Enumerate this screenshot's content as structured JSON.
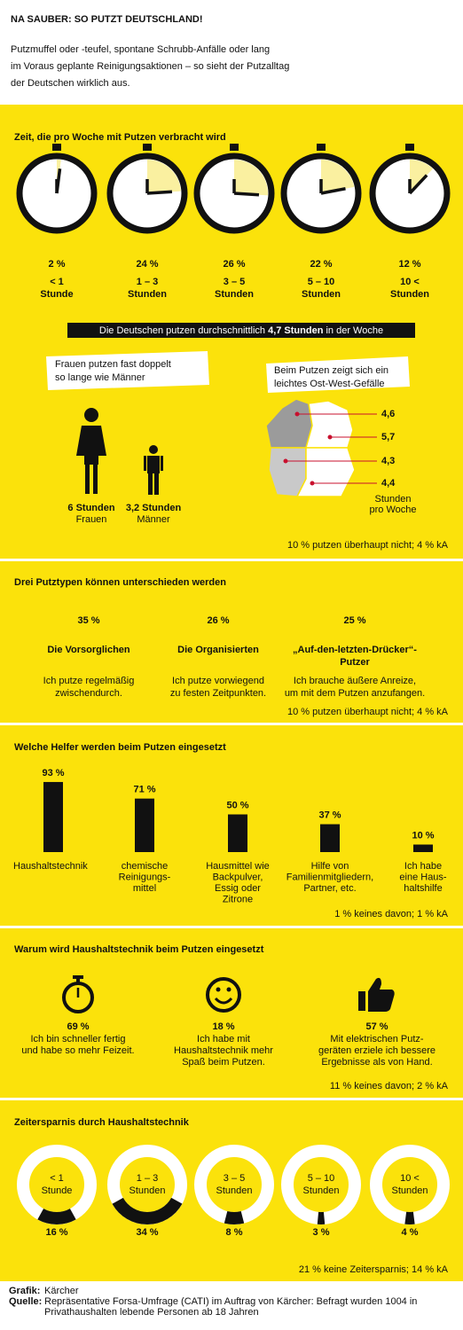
{
  "header": {
    "title": "NA SAUBER: SO PUTZT DEUTSCHLAND!",
    "subtitle": [
      "Putzmuffel oder -teufel, spontane Schrubb-Anfälle oder lang",
      "im Voraus geplante Reinigungsaktionen – so sieht der Putzalltag",
      "der Deutschen wirklich aus."
    ]
  },
  "time_per_week": {
    "title": "Zeit, die pro Woche mit Putzen verbracht wird",
    "clocks": [
      {
        "value": 2,
        "label": "2 %",
        "text": [
          "< 1",
          "Stunde"
        ]
      },
      {
        "value": 24,
        "label": "24 %",
        "text": [
          "1 – 3",
          "Stunden"
        ]
      },
      {
        "value": 26,
        "label": "26 %",
        "text": [
          "3 – 5",
          "Stunden"
        ]
      },
      {
        "value": 22,
        "label": "22 %",
        "text": [
          "5 – 10",
          "Stunden"
        ]
      },
      {
        "value": 12,
        "label": "12 %",
        "text": [
          "10 <",
          "Stunden"
        ]
      }
    ],
    "average": {
      "before": "Die Deutschen putzen durchschnittlich ",
      "highlight": "4,7 Stunden",
      "after": " in der Woche"
    },
    "gender": {
      "note": [
        "Frauen putzen fast doppelt",
        "so lange wie Männer"
      ],
      "women": {
        "value": "6 Stunden",
        "label": "Frauen"
      },
      "men": {
        "value": "3,2 Stunden",
        "label": "Männer"
      }
    },
    "region": {
      "note": [
        "Beim Putzen zeigt sich ein",
        "leichtes Ost-West-Gefälle"
      ],
      "values": [
        "4,6",
        "5,7",
        "4,3",
        "4,4"
      ],
      "unit": [
        "Stunden",
        "pro Woche"
      ]
    },
    "footnote": "10 % putzen überhaupt nicht; 4 % kA"
  },
  "types": {
    "title": "Drei Putztypen können unterschieden werden",
    "items": [
      {
        "label": "35 %",
        "name": [
          "Die Vorsorglichen"
        ],
        "text": [
          "Ich putze regelmäßig",
          "zwischendurch."
        ]
      },
      {
        "label": "26 %",
        "name": [
          "Die Organisierten"
        ],
        "text": [
          "Ich putze vorwiegend",
          "zu festen Zeitpunkten."
        ]
      },
      {
        "label": "25 %",
        "name": [
          "„Auf-den-letzten-Drücker“-",
          "Putzer"
        ],
        "text": [
          "Ich brauche äußere Anreize,",
          "um mit dem Putzen anzufangen."
        ]
      }
    ],
    "footnote": "10 % putzen überhaupt nicht; 4 % kA"
  },
  "helpers": {
    "title": "Welche Helfer werden beim Putzen eingesetzt",
    "bars": [
      {
        "value": 93,
        "label": "93 %",
        "text": [
          "Haushaltstechnik"
        ]
      },
      {
        "value": 71,
        "label": "71 %",
        "text": [
          "chemische",
          "Reinigungs-",
          "mittel"
        ]
      },
      {
        "value": 50,
        "label": "50 %",
        "text": [
          "Hausmittel wie",
          "Backpulver,",
          "Essig oder",
          "Zitrone"
        ]
      },
      {
        "value": 37,
        "label": "37 %",
        "text": [
          "Hilfe von",
          "Familienmitgliedern,",
          "Partner, etc."
        ]
      },
      {
        "value": 10,
        "label": "10 %",
        "text": [
          "Ich habe",
          "eine Haus-",
          "haltshilfe"
        ]
      }
    ],
    "footnote": "1 % keines davon; 1 % kA"
  },
  "reasons": {
    "title": "Warum wird Haushaltstechnik beim Putzen eingesetzt",
    "items": [
      {
        "label": "69 %",
        "text": [
          "Ich bin schneller fertig",
          "und habe so mehr Feizeit."
        ]
      },
      {
        "label": "18 %",
        "text": [
          "Ich habe mit",
          "Haushaltstechnik mehr",
          "Spaß beim Putzen."
        ]
      },
      {
        "label": "57 %",
        "text": [
          "Mit elektrischen Putz-",
          "geräten erziele ich bessere",
          "Ergebnisse als von Hand."
        ]
      }
    ],
    "footnote": "11 % keines davon; 2 % kA"
  },
  "savings": {
    "title": "Zeitersparnis durch Haushaltstechnik",
    "rings": [
      {
        "value": 16,
        "label": "16 %",
        "text": [
          "< 1",
          "Stunde"
        ]
      },
      {
        "value": 34,
        "label": "34 %",
        "text": [
          "1 – 3",
          "Stunden"
        ]
      },
      {
        "value": 8,
        "label": "8 %",
        "text": [
          "3 – 5",
          "Stunden"
        ]
      },
      {
        "value": 3,
        "label": "3 %",
        "text": [
          "5 – 10",
          "Stunden"
        ]
      },
      {
        "value": 4,
        "label": "4 %",
        "text": [
          "10 <",
          "Stunden"
        ]
      }
    ],
    "footnote": "21 % keine Zeitersparnis; 14 % kA"
  },
  "footer": {
    "grafik_label": "Grafik:",
    "grafik": "Kärcher",
    "quelle_label": "Quelle:",
    "quelle": [
      "Repräsentative Forsa-Umfrage (CATI) im Auftrag von Kärcher: Befragt wurden 1004 in",
      "Privathaushalten lebende Personen ab 18 Jahren"
    ]
  }
}
